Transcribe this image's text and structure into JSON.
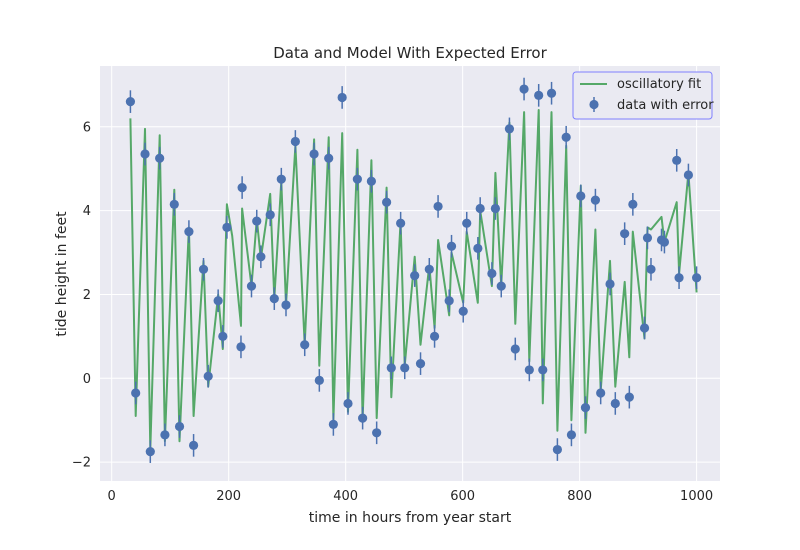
{
  "chart_data": {
    "type": "scatter",
    "title": "Data and Model With Expected Error",
    "xlabel": "time in hours from year start",
    "ylabel": "tide height in feet",
    "xlim": [
      -20,
      1040
    ],
    "ylim": [
      -2.45,
      7.45
    ],
    "xticks": [
      0,
      200,
      400,
      600,
      800,
      1000
    ],
    "yticks": [
      -2,
      0,
      2,
      4,
      6
    ],
    "grid": true,
    "legend_position": "top-right",
    "colors": {
      "background": "#eaeaf2",
      "grid": "#ffffff",
      "fit": "#55a868",
      "data": "#4c72b0",
      "legend_border": "#8080ff"
    },
    "series": [
      {
        "name": "oscillatory fit",
        "kind": "line",
        "points": [
          [
            32,
            6.2
          ],
          [
            41,
            -0.9
          ],
          [
            57,
            5.95
          ],
          [
            66,
            -1.7
          ],
          [
            82,
            5.8
          ],
          [
            91,
            -1.5
          ],
          [
            107,
            4.5
          ],
          [
            116,
            -1.5
          ],
          [
            132,
            3.6
          ],
          [
            140,
            -0.9
          ],
          [
            157,
            2.8
          ],
          [
            165,
            -0.2
          ],
          [
            182,
            2.0
          ],
          [
            190,
            0.7
          ],
          [
            197,
            4.15
          ],
          [
            206,
            3.4
          ],
          [
            221,
            1.25
          ],
          [
            223,
            4.05
          ],
          [
            239,
            2.2
          ],
          [
            248,
            3.8
          ],
          [
            255,
            2.85
          ],
          [
            271,
            4.4
          ],
          [
            278,
            1.9
          ],
          [
            290,
            4.7
          ],
          [
            298,
            1.75
          ],
          [
            314,
            5.55
          ],
          [
            330,
            0.8
          ],
          [
            346,
            5.7
          ],
          [
            355,
            0.3
          ],
          [
            371,
            5.75
          ],
          [
            379,
            -1.0
          ],
          [
            394,
            5.85
          ],
          [
            404,
            -0.8
          ],
          [
            420,
            5.45
          ],
          [
            429,
            -1.0
          ],
          [
            444,
            5.2
          ],
          [
            453,
            -0.95
          ],
          [
            470,
            4.55
          ],
          [
            478,
            -0.45
          ],
          [
            494,
            3.75
          ],
          [
            501,
            0.3
          ],
          [
            518,
            2.9
          ],
          [
            528,
            0.8
          ],
          [
            543,
            2.7
          ],
          [
            552,
            1.2
          ],
          [
            558,
            3.3
          ],
          [
            577,
            1.5
          ],
          [
            581,
            3.0
          ],
          [
            601,
            1.8
          ],
          [
            607,
            3.5
          ],
          [
            626,
            1.8
          ],
          [
            630,
            4.0
          ],
          [
            650,
            2.2
          ],
          [
            656,
            4.9
          ],
          [
            666,
            2.2
          ],
          [
            680,
            6.1
          ],
          [
            690,
            1.3
          ],
          [
            705,
            6.35
          ],
          [
            714,
            0.4
          ],
          [
            730,
            6.4
          ],
          [
            737,
            -0.6
          ],
          [
            752,
            6.35
          ],
          [
            762,
            -1.25
          ],
          [
            777,
            5.55
          ],
          [
            786,
            -1.0
          ],
          [
            802,
            4.6
          ],
          [
            810,
            -1.3
          ],
          [
            827,
            3.55
          ],
          [
            836,
            -0.3
          ],
          [
            852,
            2.8
          ],
          [
            861,
            -0.2
          ],
          [
            877,
            2.3
          ],
          [
            885,
            0.5
          ],
          [
            891,
            3.5
          ],
          [
            911,
            0.95
          ],
          [
            916,
            3.6
          ],
          [
            922,
            3.55
          ],
          [
            940,
            3.85
          ],
          [
            945,
            3.25
          ],
          [
            966,
            4.2
          ],
          [
            970,
            2.5
          ],
          [
            986,
            4.9
          ],
          [
            1000,
            2.05
          ]
        ]
      },
      {
        "name": "data with error",
        "kind": "errorbar",
        "yerr": 0.27,
        "points": [
          [
            32,
            6.6
          ],
          [
            41,
            -0.35
          ],
          [
            57,
            5.35
          ],
          [
            66,
            -1.75
          ],
          [
            82,
            5.25
          ],
          [
            91,
            -1.35
          ],
          [
            107,
            4.15
          ],
          [
            116,
            -1.15
          ],
          [
            132,
            3.5
          ],
          [
            140,
            -1.6
          ],
          [
            157,
            2.6
          ],
          [
            165,
            0.05
          ],
          [
            182,
            1.85
          ],
          [
            190,
            1.0
          ],
          [
            197,
            3.6
          ],
          [
            221,
            0.75
          ],
          [
            223,
            4.55
          ],
          [
            239,
            2.2
          ],
          [
            248,
            3.75
          ],
          [
            255,
            2.9
          ],
          [
            271,
            3.9
          ],
          [
            278,
            1.9
          ],
          [
            290,
            4.75
          ],
          [
            298,
            1.75
          ],
          [
            314,
            5.65
          ],
          [
            330,
            0.8
          ],
          [
            346,
            5.35
          ],
          [
            355,
            -0.05
          ],
          [
            371,
            5.25
          ],
          [
            379,
            -1.1
          ],
          [
            394,
            6.7
          ],
          [
            404,
            -0.6
          ],
          [
            420,
            4.75
          ],
          [
            429,
            -0.95
          ],
          [
            444,
            4.7
          ],
          [
            453,
            -1.3
          ],
          [
            470,
            4.2
          ],
          [
            478,
            0.25
          ],
          [
            494,
            3.7
          ],
          [
            501,
            0.25
          ],
          [
            518,
            2.45
          ],
          [
            528,
            0.35
          ],
          [
            543,
            2.6
          ],
          [
            552,
            1.0
          ],
          [
            558,
            4.1
          ],
          [
            577,
            1.85
          ],
          [
            581,
            3.15
          ],
          [
            601,
            1.6
          ],
          [
            607,
            3.7
          ],
          [
            626,
            3.1
          ],
          [
            630,
            4.05
          ],
          [
            650,
            2.5
          ],
          [
            656,
            4.05
          ],
          [
            666,
            2.2
          ],
          [
            680,
            5.95
          ],
          [
            690,
            0.7
          ],
          [
            705,
            6.9
          ],
          [
            714,
            0.2
          ],
          [
            730,
            6.75
          ],
          [
            737,
            0.2
          ],
          [
            752,
            6.8
          ],
          [
            762,
            -1.7
          ],
          [
            777,
            5.75
          ],
          [
            786,
            -1.35
          ],
          [
            802,
            4.35
          ],
          [
            810,
            -0.7
          ],
          [
            827,
            4.25
          ],
          [
            836,
            -0.35
          ],
          [
            852,
            2.25
          ],
          [
            861,
            -0.6
          ],
          [
            877,
            3.45
          ],
          [
            885,
            -0.45
          ],
          [
            891,
            4.15
          ],
          [
            911,
            1.2
          ],
          [
            916,
            3.35
          ],
          [
            922,
            2.6
          ],
          [
            940,
            3.3
          ],
          [
            945,
            3.25
          ],
          [
            966,
            5.2
          ],
          [
            970,
            2.4
          ],
          [
            986,
            4.85
          ],
          [
            1000,
            2.4
          ]
        ]
      }
    ]
  }
}
